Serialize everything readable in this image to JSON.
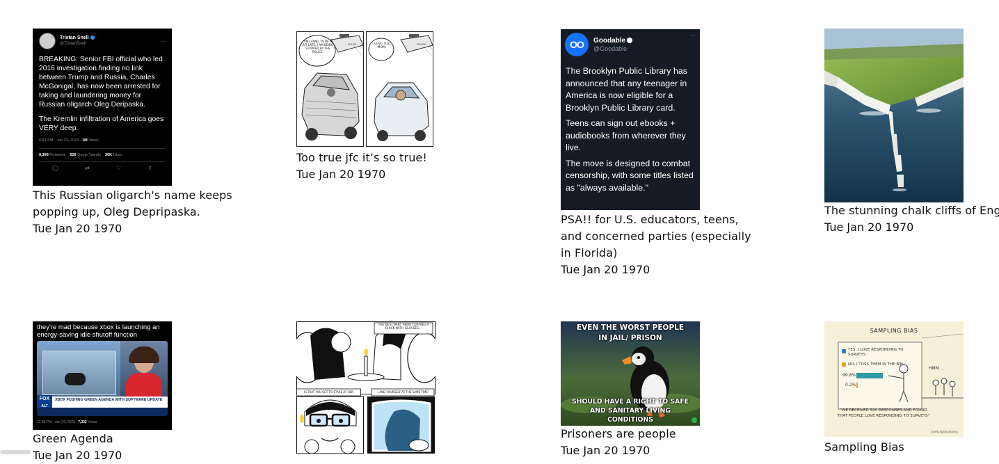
{
  "posts": [
    {
      "caption": "This Russian oligarch's name keeps popping up, Oleg Depripaska.",
      "date": "Tue Jan 20 1970",
      "image": {
        "author_name": "Tristan Snell",
        "author_handle": "@TristanSnell",
        "paragraph_1": "BREAKING: Senior FBI official who led 2016 investigation finding no link between Trump and Russia, Charles McGonigal, has now been arrested for taking and laundering money for Russian oligarch Oleg Deripaska.",
        "paragraph_2": "The Kremlin infiltration of America goes VERY deep.",
        "meta_time": "6:41 PM · Jan 23, 2023 · ",
        "meta_views": "1M",
        "meta_views_label": " Views",
        "retweets": "9,359",
        "retweets_label": " Retweets",
        "quotes": "626",
        "quotes_label": " Quote Tweets",
        "likes": "30K",
        "likes_label": " Likes"
      }
    },
    {
      "caption": "Too true jfc it’s so true!",
      "date": "Tue Jan 20 1970",
      "image": {
        "bubble_left": "I'M GOING TO BE A BIT LATE. I AM BEING STOPPED BY THE POLICE.",
        "bubble_right": "I LOVE YOU, MOM.",
        "car_label_left": "POLICE",
        "car_label_right": "POLICE"
      }
    },
    {
      "caption": "PSA!! for U.S. educators, teens, and concerned parties (especially in Florida)",
      "date": "Tue Jan 20 1970",
      "image": {
        "logo": "OO",
        "author_name": "Goodable",
        "author_handle": "@Goodable",
        "paragraph_1": "The Brooklyn Public Library has announced that any teenager in America is now eligible for a Brooklyn Public Library card.",
        "paragraph_2": "Teens can sign out ebooks + audiobooks from wherever they live.",
        "paragraph_3": "The move is designed to combat censorship, with some titles listed as \"always available.\""
      }
    },
    {
      "caption": "The stunning chalk cliffs of Eng",
      "date": "Tue Jan 20 1970",
      "image": {}
    },
    {
      "caption": "Green Agenda",
      "date": "Tue Jan 20 1970",
      "image": {
        "top_text": "they're mad because xbox is launching an energy-saving idle shutoff function",
        "network": "FOX",
        "network_sub": "ALT",
        "chyron": "XBOX PUSHING GREEN AGENDA WITH SOFTWARE UPDATE",
        "meta_time": "12:55 PM · Jan 24, 2023 · ",
        "meta_views": "7,332",
        "meta_views_label": " Views"
      }
    },
    {
      "caption": "",
      "date": "",
      "image": {
        "panel_1_text": "THE BEST PART ABOUT DATING A CHICK WITH GLASSES...",
        "panel_2_text": "IS THAT YOU GET TO STARE AT HER.",
        "panel_3_text": "...AND YOURSELF AT THE SAME TIME!"
      }
    },
    {
      "caption": "Prisoners are people",
      "date": "Tue Jan 20 1970",
      "image": {
        "top_text": "EVEN THE WORST PEOPLE IN JAIL/ PRISON",
        "bottom_text": "SHOULD HAVE A RIGHT TO SAFE AND SANITARY LIVING CONDITIONS"
      }
    },
    {
      "caption": "Sampling Bias",
      "date": "",
      "image": {
        "title": "SAMPLING BIAS",
        "option_yes": "YES, I LOVE RESPONDING TO SURVEYS",
        "option_no": "NO, I TOSS THEM IN THE BIN",
        "value_yes": "99.8%",
        "value_no": "0.2%",
        "thought": "HMM...",
        "quote": "\"WE RECEIVED 500 RESPONSES AND FOUND THAT PEOPLE LOVE RESPONDING TO SURVEYS\"",
        "signature": "sketchplanations"
      }
    }
  ],
  "colors": {
    "tweet_dark_bg": "#000000",
    "goodable_bg": "#151a24",
    "goodable_logo": "#1673ff",
    "verified_blue": "#1d9bf0"
  }
}
